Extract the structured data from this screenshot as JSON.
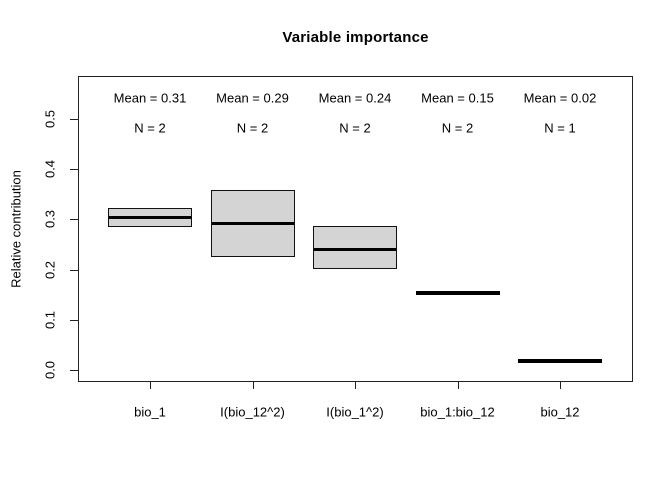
{
  "chart_data": {
    "type": "boxplot",
    "title": "Variable importance",
    "ylabel": "Relative contribution",
    "xlabel": "",
    "ylim": [
      -0.024,
      0.586
    ],
    "grid": false,
    "legend": null,
    "yticks": [
      0.0,
      0.1,
      0.2,
      0.3,
      0.4,
      0.5
    ],
    "ytick_labels": [
      "0.0",
      "0.1",
      "0.2",
      "0.3",
      "0.4",
      "0.5"
    ],
    "categories": [
      "bio_1",
      "I(bio_12^2)",
      "I(bio_1^2)",
      "bio_1:bio_12",
      "bio_12"
    ],
    "boxes": [
      {
        "category": "bio_1",
        "lo": 0.285,
        "median": 0.304,
        "hi": 0.322
      },
      {
        "category": "I(bio_12^2)",
        "lo": 0.226,
        "median": 0.293,
        "hi": 0.359
      },
      {
        "category": "I(bio_1^2)",
        "lo": 0.201,
        "median": 0.242,
        "hi": 0.287
      },
      {
        "category": "bio_1:bio_12",
        "lo": 0.154,
        "median": 0.154,
        "hi": 0.154
      },
      {
        "category": "bio_12",
        "lo": 0.017,
        "median": 0.017,
        "hi": 0.017
      }
    ],
    "annotations": [
      {
        "mean_label": "Mean = 0.31",
        "n_label": "N = 2"
      },
      {
        "mean_label": "Mean = 0.29",
        "n_label": "N = 2"
      },
      {
        "mean_label": "Mean = 0.24",
        "n_label": "N = 2"
      },
      {
        "mean_label": "Mean = 0.15",
        "n_label": "N = 2"
      },
      {
        "mean_label": "Mean = 0.02",
        "n_label": "N = 1"
      }
    ],
    "colors": {
      "box_fill": "#d4d4d4",
      "box_border": "#111111",
      "median_line": "#000000",
      "axis": "#222222",
      "text": "#000000",
      "background": "#ffffff"
    }
  }
}
